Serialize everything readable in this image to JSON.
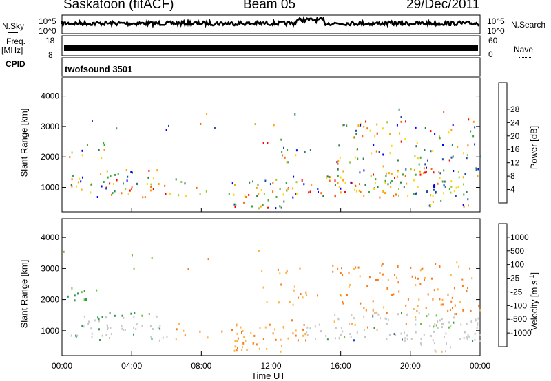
{
  "header": {
    "station": "Saskatoon (fitACF)",
    "beam": "Beam 05",
    "date": "29/Dec/2011"
  },
  "top_panels": {
    "nsky_label": "N.Sky",
    "nsky_left_ticks": [
      "10^5",
      "10^0"
    ],
    "nsearch_label": "N.Search",
    "nsearch_right_ticks": [
      "10^5",
      "10^0"
    ],
    "freq_label": "Freq.",
    "freq_unit": "[MHz]",
    "freq_ticks": [
      "18",
      "8"
    ],
    "nave_label": "Nave",
    "nave_ticks": [
      "60",
      "0"
    ],
    "cpid_label": "CPID",
    "cpid_value": "twofsound 3501"
  },
  "chart_data": [
    {
      "type": "heatmap",
      "panel": "power",
      "ylabel": "Slant Range [km]",
      "y_ticks": [
        1000,
        2000,
        3000,
        4000
      ],
      "ylim": [
        200,
        4600
      ],
      "x_ticks": [
        "00:00",
        "04:00",
        "08:00",
        "12:00",
        "16:00",
        "20:00",
        "00:00"
      ],
      "colorbar_label": "Power [dB]",
      "colorbar_ticks": [
        4,
        8,
        12,
        16,
        20,
        24,
        28
      ],
      "colorbar_colors": [
        "#0000ff",
        "#1f4ea8",
        "#2e7d55",
        "#3aa63a",
        "#9acd32",
        "#ffd700",
        "#ffa500",
        "#ff6a00",
        "#ff0000"
      ]
    },
    {
      "type": "heatmap",
      "panel": "velocity",
      "ylabel": "Slant Range [km]",
      "y_ticks": [
        1000,
        2000,
        3000,
        4000
      ],
      "ylim": [
        200,
        4600
      ],
      "x_ticks": [
        "00:00",
        "04:00",
        "08:00",
        "12:00",
        "16:00",
        "20:00",
        "00:00"
      ],
      "xlabel": "Time UT",
      "colorbar_label": "Velocity [m s",
      "colorbar_label_sup": "-1",
      "colorbar_label_end": "]",
      "colorbar_ticks": [
        "1000",
        "500",
        "100",
        "25",
        "-25",
        "-100",
        "-500",
        "-1000"
      ],
      "colorbar_colors": [
        "#1f3fb0",
        "#2e6e9e",
        "#2e9a50",
        "#69c43a",
        "#c8c8c8",
        "#c8c8c8",
        "#ffb43c",
        "#ff7a14",
        "#ff0000"
      ]
    }
  ]
}
